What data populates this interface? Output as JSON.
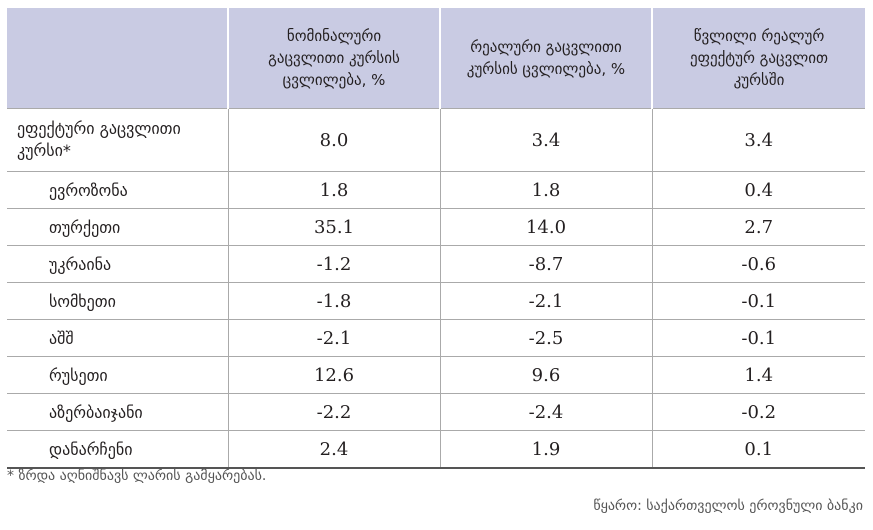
{
  "table": {
    "header": [
      "",
      "ნომინალური გაცვლითი კურსის ცვლილება, %",
      "რეალური გაცვლითი კურსის ცვლილება, %",
      "წვლილი რეალურ ეფექტურ გაცვლით კურსში"
    ],
    "rows": [
      [
        "ეფექტური გაცვლითი კურსი*",
        "8.0",
        "3.4",
        "3.4"
      ],
      [
        "ევროზონა",
        "1.8",
        "1.8",
        "0.4"
      ],
      [
        "თურქეთი",
        "35.1",
        "14.0",
        "2.7"
      ],
      [
        "უკრაინა",
        "-1.2",
        "-8.7",
        "-0.6"
      ],
      [
        "სომხეთი",
        "-1.8",
        "-2.1",
        "-0.1"
      ],
      [
        "აშშ",
        "-2.1",
        "-2.5",
        "-0.1"
      ],
      [
        "რუსეთი",
        "12.6",
        "9.6",
        "1.4"
      ],
      [
        "აზერბაიჯანი",
        "-2.2",
        "-2.4",
        "-0.2"
      ],
      [
        "დანარჩენი",
        "2.4",
        "1.9",
        "0.1"
      ]
    ]
  },
  "footnote": "* ზრდა აღნიშნავს ლარის გამყარებას.",
  "source": "წყარო: საქართველოს ეროვნული ბანკი"
}
